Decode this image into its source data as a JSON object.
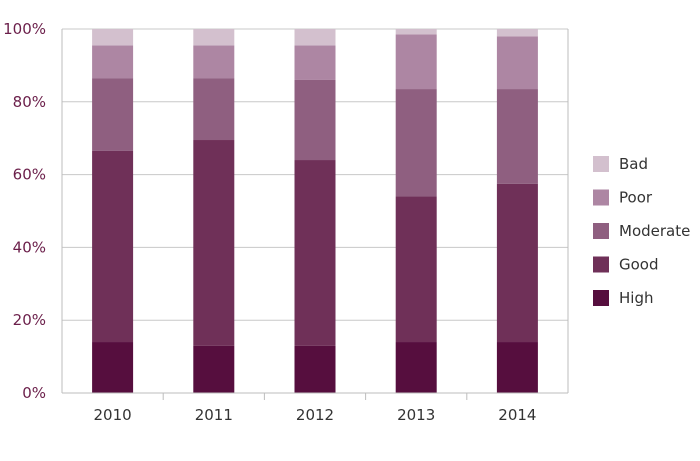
{
  "chart_data": {
    "type": "bar",
    "stacked": true,
    "percent": true,
    "categories": [
      "2010",
      "2011",
      "2012",
      "2013",
      "2014"
    ],
    "series": [
      {
        "name": "High",
        "color": "#560e3e",
        "values": [
          14,
          13,
          13,
          14,
          14
        ]
      },
      {
        "name": "Good",
        "color": "#6f3058",
        "values": [
          52.5,
          56.5,
          51,
          40,
          43.5
        ]
      },
      {
        "name": "Moderate",
        "color": "#8f5f80",
        "values": [
          20,
          17,
          22,
          29.5,
          26
        ]
      },
      {
        "name": "Poor",
        "color": "#ad86a3",
        "values": [
          9,
          9,
          9.5,
          15,
          14.5
        ]
      },
      {
        "name": "Bad",
        "color": "#d3c0ce",
        "values": [
          4.5,
          4.5,
          4.5,
          1.5,
          2
        ]
      }
    ],
    "y_ticks": [
      "0%",
      "20%",
      "40%",
      "60%",
      "80%",
      "100%"
    ],
    "ylim": [
      0,
      100
    ],
    "grid": true,
    "legend": "right",
    "legend_order": [
      "Bad",
      "Poor",
      "Moderate",
      "Good",
      "High"
    ],
    "colors": {
      "axis": "#bdbdbd",
      "grid": "#c8c8c8",
      "ytick": "#6b1f4a"
    }
  }
}
